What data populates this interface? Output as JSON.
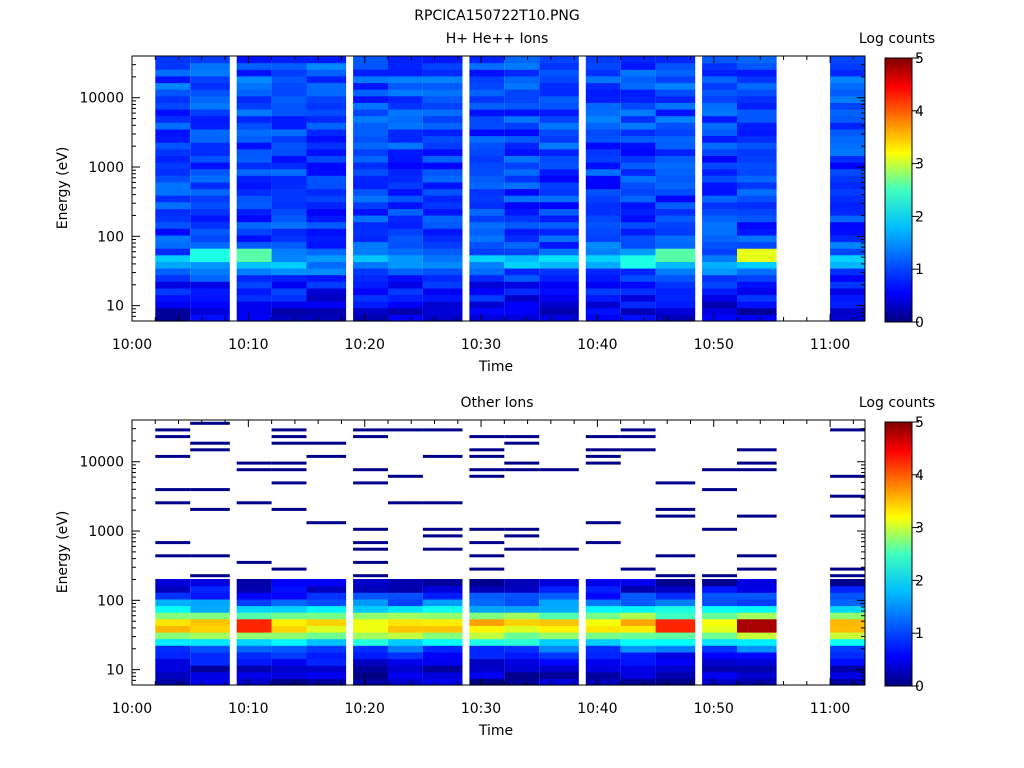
{
  "page_title": "RPCICA150722T10.PNG",
  "chart_data": [
    {
      "type": "heatmap",
      "title": "H+ He++ Ions",
      "xlabel": "Time",
      "ylabel": "Energy (eV)",
      "yscale": "log",
      "ylim": [
        6,
        40000
      ],
      "xlim": [
        "10:00",
        "11:03"
      ],
      "x_ticks": [
        "10:00",
        "10:10",
        "10:20",
        "10:30",
        "10:40",
        "10:50",
        "11:00"
      ],
      "y_ticks": [
        "10",
        "100",
        "1000",
        "10000"
      ],
      "time_bins_start": [
        "10:02",
        "10:05",
        "10:09",
        "10:12",
        "10:15",
        "10:19",
        "10:22",
        "10:25",
        "10:29",
        "10:32",
        "10:35",
        "10:39",
        "10:42",
        "10:45",
        "10:49",
        "10:52",
        "11:00"
      ],
      "data_gap": [
        "10:56",
        "11:00"
      ],
      "colorbar": {
        "label": "Log counts",
        "ticks": [
          "0",
          "1",
          "2",
          "3",
          "4",
          "5"
        ],
        "range": [
          0,
          5
        ],
        "colormap": "jet"
      },
      "profile_log_counts": [
        {
          "energy_eV": 8,
          "log_counts": 0.4
        },
        {
          "energy_eV": 12,
          "log_counts": 0.6
        },
        {
          "energy_eV": 20,
          "log_counts": 0.7
        },
        {
          "energy_eV": 30,
          "log_counts": 1.0
        },
        {
          "energy_eV": 45,
          "log_counts": 1.6
        },
        {
          "energy_eV": 60,
          "log_counts": 1.1
        },
        {
          "energy_eV": 100,
          "log_counts": 0.9
        },
        {
          "energy_eV": 1000,
          "log_counts": 0.9
        },
        {
          "energy_eV": 10000,
          "log_counts": 1.0
        },
        {
          "energy_eV": 35000,
          "log_counts": 1.0
        }
      ],
      "peaks_log_counts": [
        {
          "time": "10:05",
          "energy_eV": 50,
          "log_counts": 2.0
        },
        {
          "time": "10:09",
          "energy_eV": 50,
          "log_counts": 2.3
        },
        {
          "time": "10:42",
          "energy_eV": 45,
          "log_counts": 2.0
        },
        {
          "time": "10:45",
          "energy_eV": 50,
          "log_counts": 2.3
        },
        {
          "time": "10:52",
          "energy_eV": 50,
          "log_counts": 3.0
        }
      ]
    },
    {
      "type": "heatmap",
      "title": "Other Ions",
      "xlabel": "Time",
      "ylabel": "Energy (eV)",
      "yscale": "log",
      "ylim": [
        6,
        40000
      ],
      "xlim": [
        "10:00",
        "11:03"
      ],
      "x_ticks": [
        "10:00",
        "10:10",
        "10:20",
        "10:30",
        "10:40",
        "10:50",
        "11:00"
      ],
      "y_ticks": [
        "10",
        "100",
        "1000",
        "10000"
      ],
      "time_bins_start": [
        "10:02",
        "10:05",
        "10:09",
        "10:12",
        "10:15",
        "10:19",
        "10:22",
        "10:25",
        "10:29",
        "10:32",
        "10:35",
        "10:39",
        "10:42",
        "10:45",
        "10:49",
        "10:52",
        "11:00"
      ],
      "data_gap": [
        "10:56",
        "11:00"
      ],
      "colorbar": {
        "label": "Log counts",
        "ticks": [
          "0",
          "1",
          "2",
          "3",
          "4",
          "5"
        ],
        "range": [
          0,
          5
        ],
        "colormap": "jet"
      },
      "profile_log_counts": [
        {
          "energy_eV": 8,
          "log_counts": 0.3
        },
        {
          "energy_eV": 12,
          "log_counts": 0.5
        },
        {
          "energy_eV": 18,
          "log_counts": 0.7
        },
        {
          "energy_eV": 28,
          "log_counts": 2.2
        },
        {
          "energy_eV": 35,
          "log_counts": 3.0
        },
        {
          "energy_eV": 45,
          "log_counts": 3.6
        },
        {
          "energy_eV": 55,
          "log_counts": 2.8
        },
        {
          "energy_eV": 80,
          "log_counts": 1.5
        },
        {
          "energy_eV": 130,
          "log_counts": 0.6
        },
        {
          "energy_eV": 200,
          "log_counts": 0.3
        }
      ],
      "sparse_above_eV": 200,
      "peaks_log_counts": [
        {
          "time": "10:09",
          "energy_eV": 45,
          "log_counts": 4.2
        },
        {
          "time": "10:45",
          "energy_eV": 45,
          "log_counts": 4.2
        },
        {
          "time": "10:52",
          "energy_eV": 45,
          "log_counts": 4.8
        }
      ]
    }
  ]
}
